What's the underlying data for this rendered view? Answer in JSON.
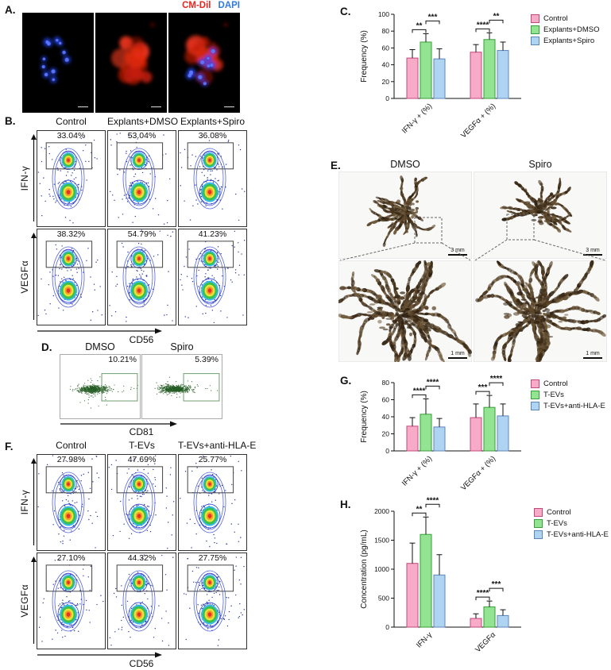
{
  "colors": {
    "cm_dil": "#e8251f",
    "dapi": "#2f7bdc"
  },
  "panels": {
    "A": {
      "label": "A.",
      "cm_dil": "CM-Dil",
      "dapi": "DAPI"
    },
    "B": {
      "label": "B.",
      "columns": [
        "Control",
        "Explants+DMSO",
        "Explants+Spiro"
      ],
      "rows": [
        "IFN-γ",
        "VEGFα"
      ],
      "xlabel": "CD56",
      "percents": [
        [
          "33.04%",
          "53.04%",
          "36.08%"
        ],
        [
          "38.32%",
          "54.79%",
          "41.23%"
        ]
      ]
    },
    "C": {
      "label": "C."
    },
    "D": {
      "label": "D.",
      "columns": [
        "DMSO",
        "Spiro"
      ],
      "xlabel": "CD81",
      "percents": [
        "10.21%",
        "5.39%"
      ]
    },
    "E": {
      "label": "E.",
      "columns": [
        "DMSO",
        "Spiro"
      ],
      "scale_top": "3 mm",
      "scale_bottom": "1 mm"
    },
    "F": {
      "label": "F.",
      "columns": [
        "Control",
        "T-EVs",
        "T-EVs+anti-HLA-E"
      ],
      "rows": [
        "IFN-γ",
        "VEGFα"
      ],
      "xlabel": "CD56",
      "percents": [
        [
          "27.98%",
          "47.69%",
          "25.77%"
        ],
        [
          "27.10%",
          "44.32%",
          "27.75%"
        ]
      ]
    },
    "G": {
      "label": "G."
    },
    "H": {
      "label": "H."
    }
  },
  "chart_data": [
    {
      "id": "C",
      "type": "bar",
      "ylabel": "Frequency (%)",
      "ylim": [
        0,
        100
      ],
      "yticks": [
        0,
        20,
        40,
        60,
        80,
        100
      ],
      "categories": [
        "IFN-γ + (%)",
        "VEGFα + (%)"
      ],
      "series": [
        {
          "name": "Control",
          "color": "#F7ABC7",
          "border": "#c2497e",
          "values": [
            48,
            55
          ],
          "errors": [
            10,
            9
          ]
        },
        {
          "name": "Explants+DMSO",
          "color": "#92E492",
          "border": "#3a9e3a",
          "values": [
            67,
            70
          ],
          "errors": [
            10,
            8
          ]
        },
        {
          "name": "Explants+Spiro",
          "color": "#AFD4F2",
          "border": "#5b86b8",
          "values": [
            47,
            57
          ],
          "errors": [
            12,
            10
          ]
        }
      ],
      "significance": [
        {
          "group": 0,
          "bars": [
            0,
            1
          ],
          "label": "**"
        },
        {
          "group": 0,
          "bars": [
            1,
            2
          ],
          "label": "***"
        },
        {
          "group": 1,
          "bars": [
            0,
            1
          ],
          "label": "****"
        },
        {
          "group": 1,
          "bars": [
            1,
            2
          ],
          "label": "**"
        }
      ],
      "legend_position": "right"
    },
    {
      "id": "G",
      "type": "bar",
      "ylabel": "Frequency (%)",
      "ylim": [
        0,
        80
      ],
      "yticks": [
        0,
        20,
        40,
        60,
        80
      ],
      "categories": [
        "IFN-γ + (%)",
        "VEGFα + (%)"
      ],
      "series": [
        {
          "name": "Control",
          "color": "#F7ABC7",
          "border": "#c2497e",
          "values": [
            29,
            39
          ],
          "errors": [
            10,
            16
          ]
        },
        {
          "name": "T-EVs",
          "color": "#92E492",
          "border": "#3a9e3a",
          "values": [
            43,
            51
          ],
          "errors": [
            18,
            14
          ]
        },
        {
          "name": "T-EVs+anti-HLA-E",
          "color": "#AFD4F2",
          "border": "#5b86b8",
          "values": [
            28,
            41
          ],
          "errors": [
            10,
            14
          ]
        }
      ],
      "significance": [
        {
          "group": 0,
          "bars": [
            0,
            1
          ],
          "label": "****"
        },
        {
          "group": 0,
          "bars": [
            1,
            2
          ],
          "label": "****"
        },
        {
          "group": 1,
          "bars": [
            0,
            1
          ],
          "label": "***"
        },
        {
          "group": 1,
          "bars": [
            1,
            2
          ],
          "label": "****"
        }
      ],
      "legend_position": "right"
    },
    {
      "id": "H",
      "type": "bar",
      "ylabel": "Concentration (pg/mL)",
      "ylim": [
        0,
        2000
      ],
      "yticks": [
        0,
        500,
        1000,
        1500,
        2000
      ],
      "categories": [
        "IFN-γ",
        "VEGFα"
      ],
      "series": [
        {
          "name": "Control",
          "color": "#F7ABC7",
          "border": "#c2497e",
          "values": [
            1100,
            150
          ],
          "errors": [
            350,
            80
          ]
        },
        {
          "name": "T-EVs",
          "color": "#92E492",
          "border": "#3a9e3a",
          "values": [
            1600,
            350
          ],
          "errors": [
            300,
            100
          ]
        },
        {
          "name": "T-EVs+anti-HLA-E",
          "color": "#AFD4F2",
          "border": "#5b86b8",
          "values": [
            900,
            200
          ],
          "errors": [
            350,
            100
          ]
        }
      ],
      "significance": [
        {
          "group": 0,
          "bars": [
            0,
            1
          ],
          "label": "**"
        },
        {
          "group": 0,
          "bars": [
            1,
            2
          ],
          "label": "****"
        },
        {
          "group": 1,
          "bars": [
            0,
            1
          ],
          "label": "****"
        },
        {
          "group": 1,
          "bars": [
            1,
            2
          ],
          "label": "***"
        }
      ],
      "legend_position": "right"
    }
  ]
}
